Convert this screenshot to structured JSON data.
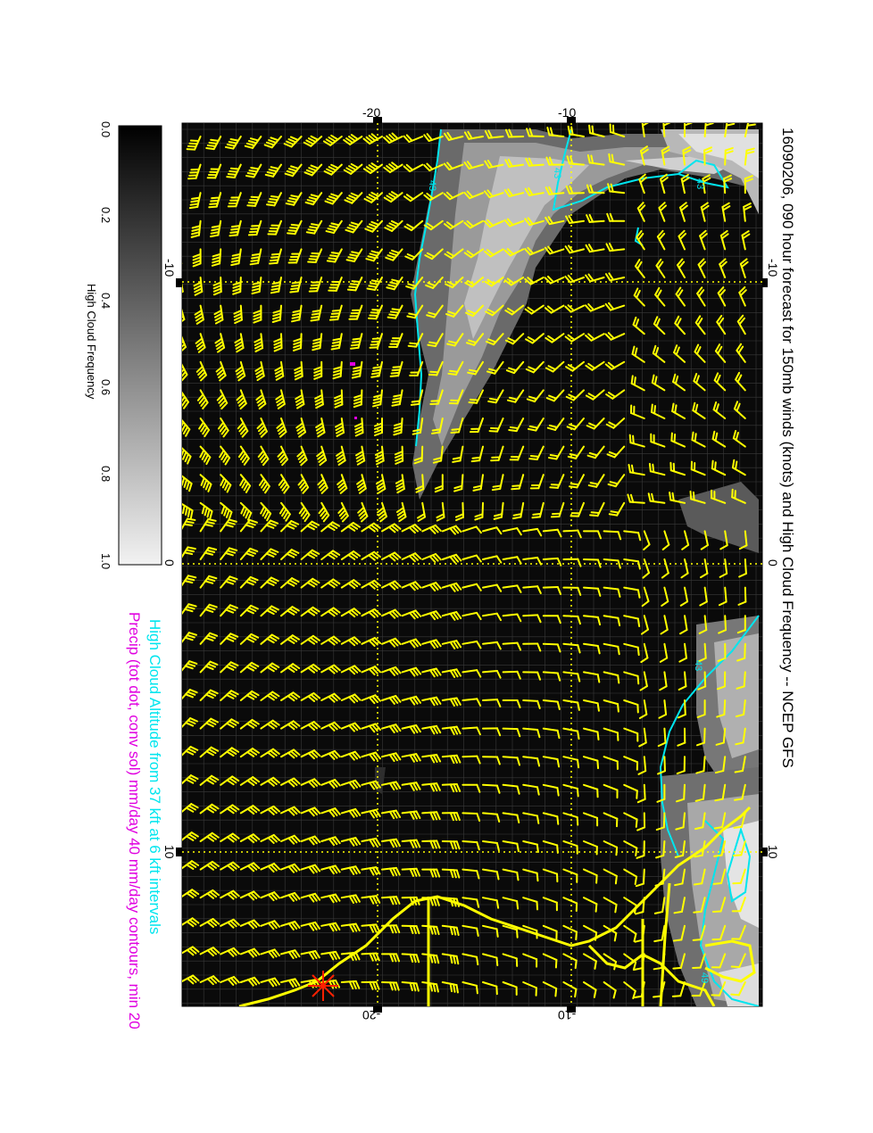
{
  "title": "16090206, 090 hour forecast for 150mb winds (knots) and High Cloud Frequency -- NCEP GFS",
  "legend": {
    "line1": "High Cloud Altitude from 37 kft at 6 kft intervals",
    "line2": "Precip (tot dot, conv sol) mm/day 40 mm/day contours, min 20"
  },
  "colorbar": {
    "label": "High Cloud Frequency",
    "ticks": [
      "0.0",
      "0.2",
      "0.4",
      "0.6",
      "0.8",
      "1.0"
    ]
  },
  "axes": {
    "lat_ticks": [
      "-10",
      "0",
      "10"
    ],
    "lon_ticks": [
      "-20",
      "-10"
    ]
  },
  "contour_labels": [
    "43",
    "43",
    "43",
    "43",
    "49"
  ],
  "colors": {
    "background": "#0a0a0a",
    "barbs": "#ffff00",
    "coast": "#ffff00",
    "contour": "#00e5ee",
    "precip": "#e000e0",
    "star": "#ff2000"
  }
}
